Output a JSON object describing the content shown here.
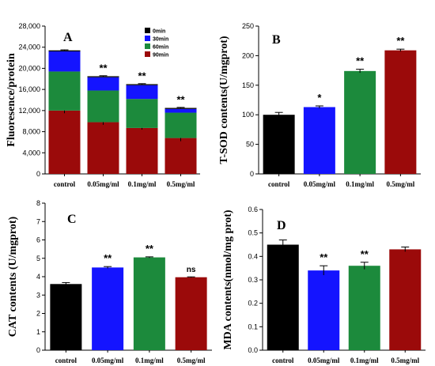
{
  "colors": {
    "black": "#000000",
    "blue": "#1414ff",
    "green": "#1c8a3c",
    "red": "#9b0a0a"
  },
  "chart_data": [
    {
      "panel": "A",
      "type": "bar",
      "stacked": true,
      "categories": [
        "control",
        "0.05mg/ml",
        "0.1mg/ml",
        "0.5mg/ml"
      ],
      "ylabel": "Fluoresence/protein",
      "ylim": [
        0,
        28000
      ],
      "yticks": [
        0,
        4000,
        8000,
        12000,
        16000,
        20000,
        24000,
        28000
      ],
      "ytick_labels": [
        "0",
        "4,000",
        "8,000",
        "12,000",
        "16,000",
        "20,000",
        "24,000",
        "28,000"
      ],
      "series": [
        {
          "name": "90min",
          "color": "#9b0a0a",
          "values": [
            12000,
            9800,
            8700,
            6800
          ],
          "err": [
            500,
            500,
            300,
            600
          ]
        },
        {
          "name": "60min",
          "color": "#1c8a3c",
          "values": [
            7400,
            6000,
            5500,
            4800
          ],
          "err": [
            0,
            0,
            0,
            0
          ]
        },
        {
          "name": "30min",
          "color": "#1414ff",
          "values": [
            3800,
            2500,
            2600,
            700
          ],
          "err": [
            0,
            0,
            0,
            0
          ]
        },
        {
          "name": "0min",
          "color": "#000000",
          "values": [
            200,
            200,
            200,
            200
          ],
          "err": [
            100,
            100,
            100,
            100
          ]
        }
      ],
      "legend_order": [
        "0min",
        "30min",
        "60min",
        "90min"
      ],
      "legend": "top-right",
      "significance": [
        "",
        "**",
        "**",
        "**"
      ]
    },
    {
      "panel": "B",
      "type": "bar",
      "categories": [
        "control",
        "0.05mg/ml",
        "0.1mg/ml",
        "0.5mg/ml"
      ],
      "ylabel": "T-SOD contents(U/mgprot)",
      "ylim": [
        0,
        250
      ],
      "yticks": [
        0,
        50,
        100,
        150,
        200,
        250
      ],
      "ytick_labels": [
        "0",
        "50",
        "100",
        "150",
        "200",
        "250"
      ],
      "values": [
        100,
        113,
        174,
        209
      ],
      "err": [
        4,
        2,
        3,
        2
      ],
      "colors": [
        "#000000",
        "#1414ff",
        "#1c8a3c",
        "#9b0a0a"
      ],
      "significance": [
        "",
        "*",
        "**",
        "**"
      ]
    },
    {
      "panel": "C",
      "type": "bar",
      "categories": [
        "control",
        "0.05mg/ml",
        "0.1mg/ml",
        "0.5mg/ml"
      ],
      "ylabel": "CAT contents  (U/mgprot)",
      "ylim": [
        0,
        8
      ],
      "yticks": [
        0,
        1,
        2,
        3,
        4,
        5,
        6,
        7,
        8
      ],
      "ytick_labels": [
        "0",
        "1",
        "2",
        "3",
        "4",
        "5",
        "6",
        "7",
        "8"
      ],
      "values": [
        3.6,
        4.5,
        5.05,
        3.97
      ],
      "err": [
        0.08,
        0.05,
        0.03,
        0.02
      ],
      "colors": [
        "#000000",
        "#1414ff",
        "#1c8a3c",
        "#9b0a0a"
      ],
      "significance": [
        "",
        "**",
        "**",
        "ns"
      ]
    },
    {
      "panel": "D",
      "type": "bar",
      "categories": [
        "control",
        "0.05mg/ml",
        "0.1mg/ml",
        "0.5mg/ml"
      ],
      "ylabel": "MDA contents(nmol/mg prot)",
      "ylim": [
        0,
        0.6
      ],
      "yticks": [
        0,
        0.1,
        0.2,
        0.3,
        0.4,
        0.5,
        0.6
      ],
      "ytick_labels": [
        "0.0",
        "0.1",
        "0.2",
        "0.3",
        "0.4",
        "0.5",
        "0.6"
      ],
      "values": [
        0.45,
        0.34,
        0.36,
        0.43
      ],
      "err": [
        0.02,
        0.02,
        0.015,
        0.01
      ],
      "colors": [
        "#000000",
        "#1414ff",
        "#1c8a3c",
        "#9b0a0a"
      ],
      "significance": [
        "",
        "**",
        "**",
        ""
      ]
    }
  ]
}
